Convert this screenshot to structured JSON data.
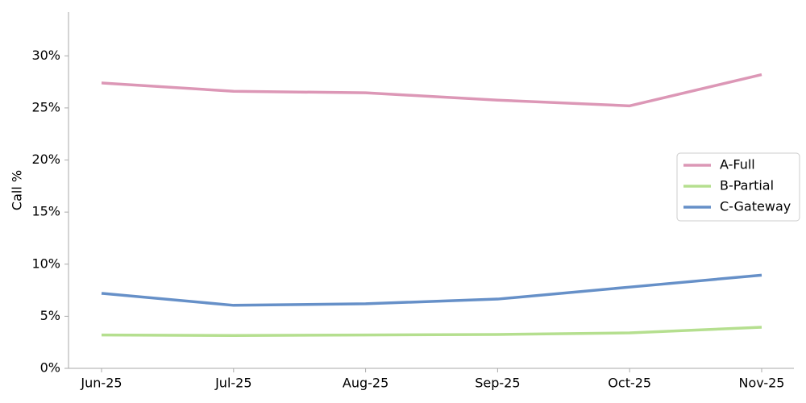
{
  "chart_data": {
    "type": "line",
    "y_label": "Call %",
    "categories": [
      "Jun-25",
      "Jul-25",
      "Aug-25",
      "Sep-25",
      "Oct-25",
      "Nov-25"
    ],
    "series": [
      {
        "name": "A-Full",
        "color": "#dc97b6",
        "values": [
          27.4,
          26.6,
          26.45,
          25.75,
          25.2,
          28.2
        ]
      },
      {
        "name": "B-Partial",
        "color": "#b5df8f",
        "values": [
          3.2,
          3.15,
          3.2,
          3.25,
          3.4,
          3.95
        ]
      },
      {
        "name": "C-Gateway",
        "color": "#6690c8",
        "values": [
          7.2,
          6.05,
          6.2,
          6.65,
          7.8,
          8.95
        ]
      }
    ],
    "ylim": [
      0,
      34.2
    ],
    "yticks": [
      {
        "value": 0,
        "label": "0%"
      },
      {
        "value": 5,
        "label": "5%"
      },
      {
        "value": 10,
        "label": "10%"
      },
      {
        "value": 15,
        "label": "15%"
      },
      {
        "value": 20,
        "label": "20%"
      },
      {
        "value": 25,
        "label": "25%"
      },
      {
        "value": 30,
        "label": "30%"
      }
    ],
    "legend": "right",
    "grid": false
  }
}
